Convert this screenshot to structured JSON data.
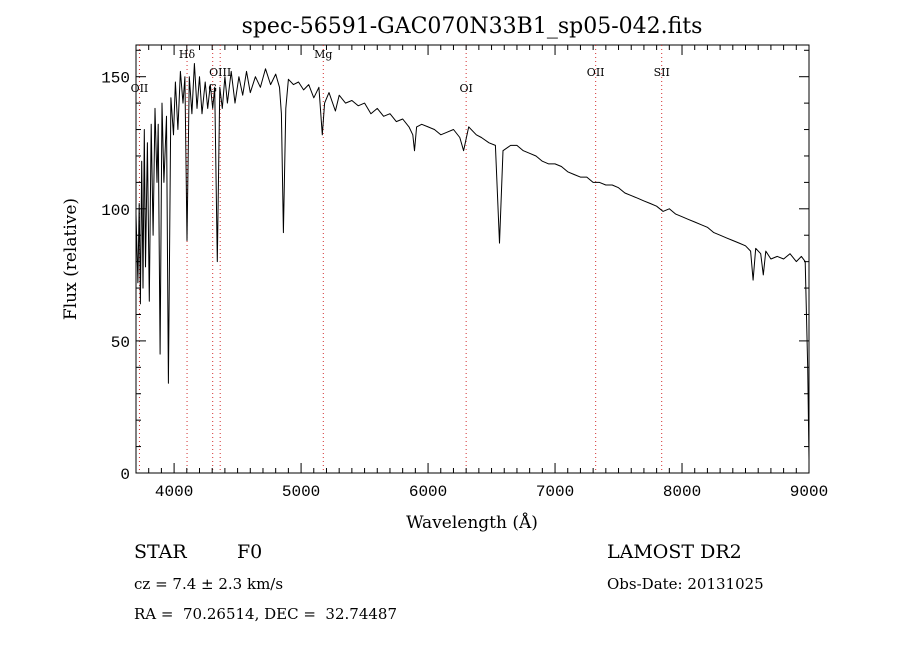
{
  "chart_data": {
    "type": "line",
    "title": "spec-56591-GAC070N33B1_sp05-042.fits",
    "xlabel": "Wavelength (Å)",
    "ylabel": "Flux (relative)",
    "xlim": [
      3700,
      9000
    ],
    "ylim": [
      0,
      162
    ],
    "xticks": [
      4000,
      5000,
      6000,
      7000,
      8000,
      9000
    ],
    "yticks": [
      0,
      50,
      100,
      150
    ],
    "grid": false,
    "line_markers": [
      {
        "label": "OII",
        "x": 3727
      },
      {
        "label": "Hδ",
        "x": 4102
      },
      {
        "label": "G",
        "x": 4304
      },
      {
        "label": "OIII",
        "x": 4363
      },
      {
        "label": "Mg",
        "x": 5175
      },
      {
        "label": "OI",
        "x": 6300
      },
      {
        "label": "OII",
        "x": 7320
      },
      {
        "label": "SII",
        "x": 7840
      }
    ],
    "series": [
      {
        "name": "spectrum",
        "points": [
          [
            3700,
            98
          ],
          [
            3715,
            72
          ],
          [
            3725,
            102
          ],
          [
            3735,
            64
          ],
          [
            3745,
            118
          ],
          [
            3755,
            70
          ],
          [
            3765,
            130
          ],
          [
            3775,
            78
          ],
          [
            3790,
            125
          ],
          [
            3805,
            65
          ],
          [
            3820,
            132
          ],
          [
            3835,
            90
          ],
          [
            3850,
            138
          ],
          [
            3865,
            110
          ],
          [
            3875,
            132
          ],
          [
            3890,
            45
          ],
          [
            3905,
            140
          ],
          [
            3920,
            110
          ],
          [
            3940,
            135
          ],
          [
            3955,
            34
          ],
          [
            3975,
            142
          ],
          [
            3995,
            128
          ],
          [
            4010,
            148
          ],
          [
            4030,
            130
          ],
          [
            4050,
            152
          ],
          [
            4070,
            140
          ],
          [
            4085,
            150
          ],
          [
            4102,
            88
          ],
          [
            4120,
            150
          ],
          [
            4140,
            136
          ],
          [
            4160,
            155
          ],
          [
            4180,
            138
          ],
          [
            4200,
            150
          ],
          [
            4220,
            136
          ],
          [
            4245,
            148
          ],
          [
            4265,
            138
          ],
          [
            4285,
            147
          ],
          [
            4304,
            138
          ],
          [
            4320,
            146
          ],
          [
            4340,
            80
          ],
          [
            4360,
            146
          ],
          [
            4380,
            138
          ],
          [
            4400,
            150
          ],
          [
            4420,
            140
          ],
          [
            4450,
            152
          ],
          [
            4480,
            140
          ],
          [
            4510,
            150
          ],
          [
            4540,
            143
          ],
          [
            4570,
            152
          ],
          [
            4600,
            144
          ],
          [
            4640,
            150
          ],
          [
            4680,
            146
          ],
          [
            4720,
            153
          ],
          [
            4760,
            147
          ],
          [
            4800,
            151
          ],
          [
            4830,
            146
          ],
          [
            4845,
            136
          ],
          [
            4861,
            91
          ],
          [
            4880,
            138
          ],
          [
            4900,
            149
          ],
          [
            4940,
            147
          ],
          [
            4980,
            148
          ],
          [
            5020,
            145
          ],
          [
            5060,
            147
          ],
          [
            5100,
            142
          ],
          [
            5140,
            146
          ],
          [
            5167,
            128
          ],
          [
            5185,
            140
          ],
          [
            5220,
            144
          ],
          [
            5270,
            137
          ],
          [
            5300,
            143
          ],
          [
            5350,
            140
          ],
          [
            5400,
            141
          ],
          [
            5450,
            139
          ],
          [
            5500,
            140
          ],
          [
            5550,
            136
          ],
          [
            5600,
            138
          ],
          [
            5650,
            135
          ],
          [
            5700,
            136
          ],
          [
            5750,
            133
          ],
          [
            5800,
            134
          ],
          [
            5850,
            131
          ],
          [
            5880,
            128
          ],
          [
            5893,
            122
          ],
          [
            5910,
            131
          ],
          [
            5950,
            132
          ],
          [
            6000,
            131
          ],
          [
            6050,
            130
          ],
          [
            6100,
            128
          ],
          [
            6150,
            129
          ],
          [
            6200,
            130
          ],
          [
            6250,
            127
          ],
          [
            6280,
            122
          ],
          [
            6320,
            131
          ],
          [
            6380,
            128
          ],
          [
            6420,
            127
          ],
          [
            6480,
            125
          ],
          [
            6530,
            124
          ],
          [
            6563,
            87
          ],
          [
            6590,
            122
          ],
          [
            6650,
            124
          ],
          [
            6700,
            124
          ],
          [
            6750,
            122
          ],
          [
            6800,
            121
          ],
          [
            6850,
            120
          ],
          [
            6900,
            118
          ],
          [
            6950,
            117
          ],
          [
            7000,
            117
          ],
          [
            7050,
            116
          ],
          [
            7100,
            114
          ],
          [
            7150,
            113
          ],
          [
            7200,
            112
          ],
          [
            7250,
            112
          ],
          [
            7300,
            110
          ],
          [
            7350,
            110
          ],
          [
            7400,
            109
          ],
          [
            7450,
            109
          ],
          [
            7500,
            108
          ],
          [
            7550,
            106
          ],
          [
            7600,
            105
          ],
          [
            7650,
            104
          ],
          [
            7700,
            103
          ],
          [
            7750,
            102
          ],
          [
            7800,
            101
          ],
          [
            7850,
            99
          ],
          [
            7900,
            100
          ],
          [
            7950,
            98
          ],
          [
            8000,
            97
          ],
          [
            8050,
            96
          ],
          [
            8100,
            95
          ],
          [
            8150,
            94
          ],
          [
            8200,
            93
          ],
          [
            8250,
            91
          ],
          [
            8300,
            90
          ],
          [
            8350,
            89
          ],
          [
            8400,
            88
          ],
          [
            8450,
            87
          ],
          [
            8500,
            86
          ],
          [
            8540,
            84
          ],
          [
            8560,
            73
          ],
          [
            8580,
            85
          ],
          [
            8620,
            83
          ],
          [
            8640,
            75
          ],
          [
            8660,
            84
          ],
          [
            8700,
            81
          ],
          [
            8750,
            82
          ],
          [
            8800,
            81
          ],
          [
            8850,
            83
          ],
          [
            8900,
            80
          ],
          [
            8940,
            82
          ],
          [
            8970,
            80
          ],
          [
            8990,
            40
          ],
          [
            9000,
            5
          ]
        ]
      }
    ]
  },
  "footer": {
    "object_class": "STAR",
    "subclass": "F0",
    "survey": "LAMOST DR2",
    "cz": "cz = 7.4 ± 2.3 km/s",
    "obs_date": "Obs-Date: 20131025",
    "coords": "RA =  70.26514, DEC =  32.74487"
  }
}
